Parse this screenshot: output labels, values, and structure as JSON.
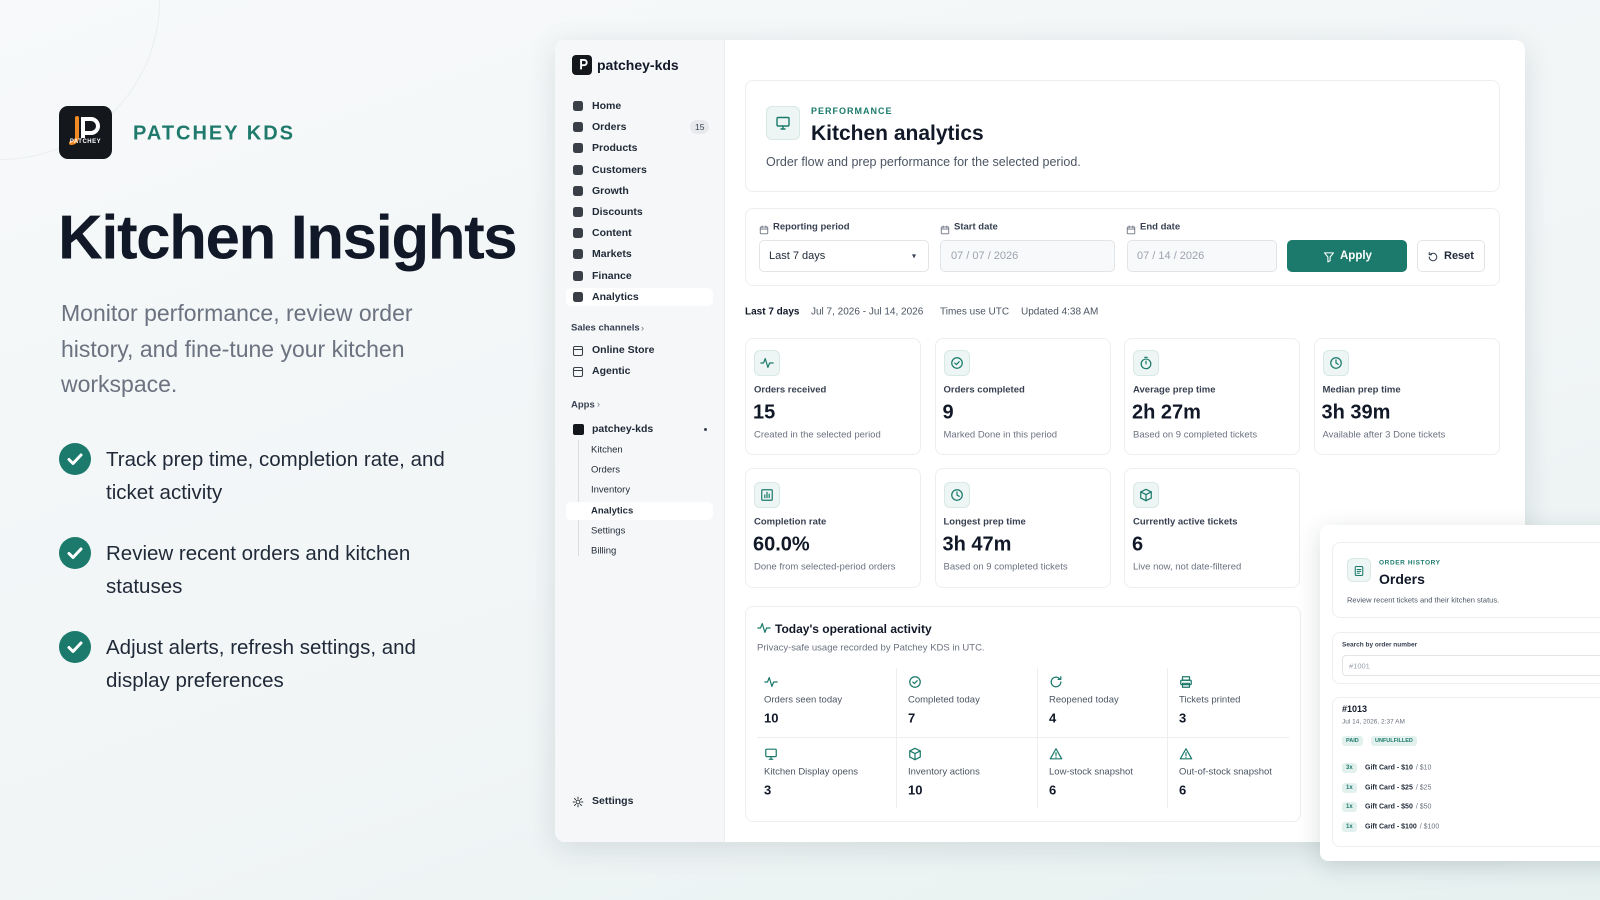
{
  "brand": {
    "logo_text": "PATCHEY",
    "name": "PATCHEY KDS"
  },
  "hero": {
    "title": "Kitchen Insights",
    "subtitle": "Monitor performance, review order history, and fine-tune your kitchen workspace.",
    "features": [
      "Track prep time, completion rate, and ticket activity",
      "Review recent orders and kitchen statuses",
      "Adjust alerts, refresh settings, and display preferences"
    ]
  },
  "sidebar": {
    "store": "patchey-kds",
    "nav": [
      {
        "label": "Home"
      },
      {
        "label": "Orders",
        "badge": 15
      },
      {
        "label": "Products"
      },
      {
        "label": "Customers"
      },
      {
        "label": "Growth"
      },
      {
        "label": "Discounts"
      },
      {
        "label": "Content"
      },
      {
        "label": "Markets"
      },
      {
        "label": "Finance"
      },
      {
        "label": "Analytics"
      }
    ],
    "sales_channels_heading": "Sales channels",
    "sales_channels": [
      "Online Store",
      "Agentic"
    ],
    "apps_heading": "Apps",
    "app": "patchey-kds",
    "app_items": [
      "Kitchen",
      "Orders",
      "Inventory",
      "Analytics",
      "Settings",
      "Billing"
    ],
    "settings": "Settings"
  },
  "header": {
    "eyebrow": "PERFORMANCE",
    "title": "Kitchen analytics",
    "description": "Order flow and prep performance for the selected period."
  },
  "filters": {
    "period_label": "Reporting period",
    "period_value": "Last 7 days",
    "start_label": "Start date",
    "start_value": "07 / 07 / 2026",
    "end_label": "End date",
    "end_value": "07 / 14 / 2026",
    "apply": "Apply",
    "reset": "Reset"
  },
  "summary": [
    "Last 7 days",
    "Jul 7, 2026 - Jul 14, 2026",
    "Times use UTC",
    "Updated 4:38 AM"
  ],
  "metrics": [
    {
      "label": "Orders received",
      "value": 15,
      "note": "Created in the selected period"
    },
    {
      "label": "Orders completed",
      "value": 9,
      "note": "Marked Done in this period"
    },
    {
      "label": "Average prep time",
      "value": "2h 27m",
      "note": "Based on 9 completed tickets"
    },
    {
      "label": "Median prep time",
      "value": "3h 39m",
      "note": "Available after 3 Done tickets"
    },
    {
      "label": "Completion rate",
      "value": "60.0%",
      "note": "Done from selected-period orders"
    },
    {
      "label": "Longest prep time",
      "value": "3h 47m",
      "note": "Based on 9 completed tickets"
    },
    {
      "label": "Currently active tickets",
      "value": 6,
      "note": "Live now, not date-filtered"
    }
  ],
  "activity": {
    "title": "Today's operational activity",
    "subtitle": "Privacy-safe usage recorded by Patchey KDS in UTC.",
    "items": [
      {
        "label": "Orders seen today",
        "value": 10
      },
      {
        "label": "Completed today",
        "value": 7
      },
      {
        "label": "Reopened today",
        "value": 4
      },
      {
        "label": "Tickets printed",
        "value": 3
      },
      {
        "label": "Kitchen Display opens",
        "value": 3
      },
      {
        "label": "Inventory actions",
        "value": 10
      },
      {
        "label": "Low-stock snapshot",
        "value": 6
      },
      {
        "label": "Out-of-stock snapshot",
        "value": 6
      }
    ]
  },
  "orders_panel": {
    "eyebrow": "ORDER HISTORY",
    "title": "Orders",
    "description": "Review recent tickets and their kitchen status.",
    "search_label": "Search by order number",
    "search_placeholder": "#1001",
    "order": {
      "number": "#1013",
      "date": "Jul 14, 2026, 2:37 AM",
      "badges": [
        "PAID",
        "UNFULFILLED"
      ],
      "lines": [
        {
          "qty": "3x",
          "item": "Gift Card - $10",
          "price": "/ $10"
        },
        {
          "qty": "1x",
          "item": "Gift Card - $25",
          "price": "/ $25"
        },
        {
          "qty": "1x",
          "item": "Gift Card - $50",
          "price": "/ $50"
        },
        {
          "qty": "1x",
          "item": "Gift Card - $100",
          "price": "/ $100"
        }
      ]
    }
  }
}
